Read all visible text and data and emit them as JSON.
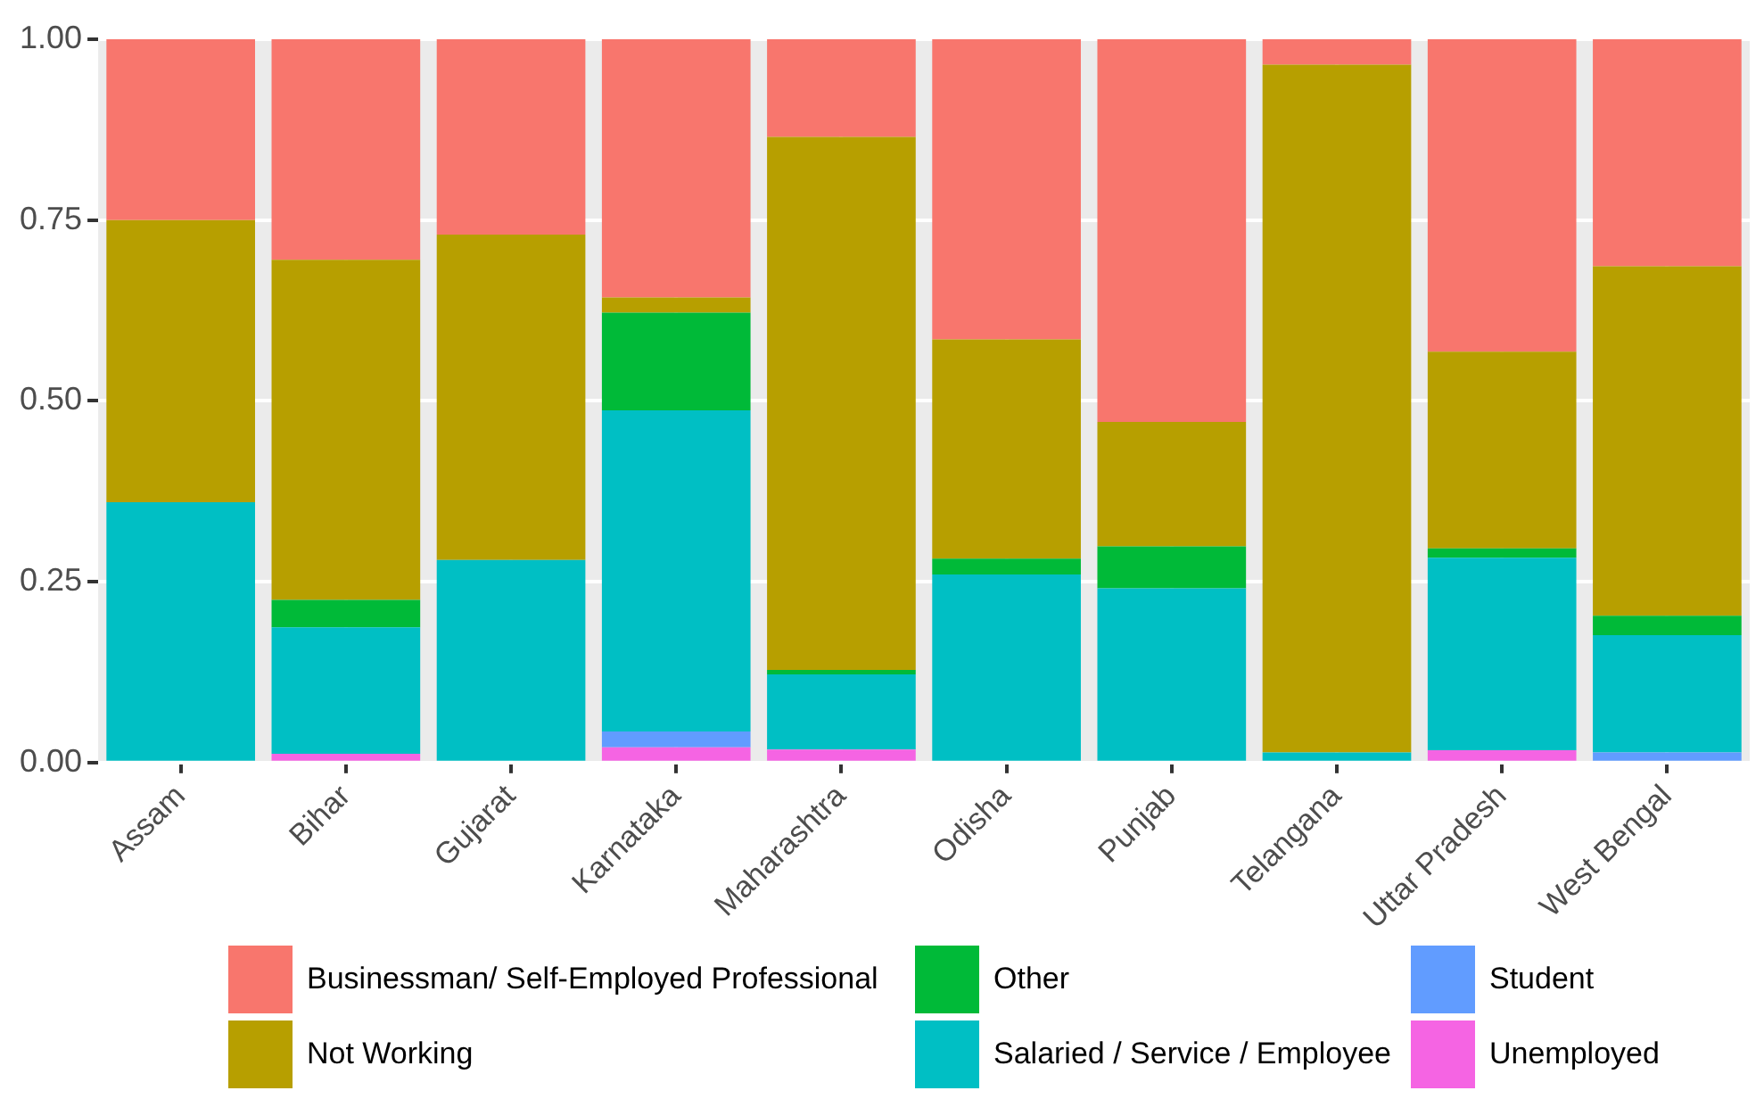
{
  "chart_data": {
    "type": "bar",
    "stacked": true,
    "categories": [
      "Assam",
      "Bihar",
      "Gujarat",
      "Karnataka",
      "Maharashtra",
      "Odisha",
      "Punjab",
      "Telangana",
      "Uttar Pradesh",
      "West Bengal"
    ],
    "series": [
      {
        "name": "Unemployed",
        "color": "#f564e3",
        "values": [
          0,
          0.012,
          0,
          0.021,
          0.018,
          0,
          0,
          0,
          0.017,
          0
        ]
      },
      {
        "name": "Student",
        "color": "#619cff",
        "values": [
          0,
          0,
          0,
          0.022,
          0,
          0,
          0,
          0,
          0,
          0.014
        ]
      },
      {
        "name": "Salaried / Service / Employee",
        "color": "#00bfc4",
        "values": [
          0.36,
          0.175,
          0.28,
          0.444,
          0.104,
          0.26,
          0.241,
          0.014,
          0.266,
          0.162
        ]
      },
      {
        "name": "Other",
        "color": "#00ba38",
        "values": [
          0,
          0.038,
          0,
          0.135,
          0.006,
          0.022,
          0.058,
          0,
          0.013,
          0.027
        ]
      },
      {
        "name": "Not Working",
        "color": "#b79f00",
        "values": [
          0.39,
          0.47,
          0.45,
          0.021,
          0.737,
          0.303,
          0.172,
          0.951,
          0.272,
          0.483
        ]
      },
      {
        "name": "Businessman/ Self-Employed Professional",
        "color": "#f8766d",
        "values": [
          0.25,
          0.305,
          0.27,
          0.357,
          0.135,
          0.415,
          0.529,
          0.035,
          0.432,
          0.314
        ]
      }
    ],
    "ylim": [
      0,
      1
    ],
    "yticks": [
      {
        "value": 0,
        "label": "0.00"
      },
      {
        "value": 0.25,
        "label": "0.25"
      },
      {
        "value": 0.5,
        "label": "0.50"
      },
      {
        "value": 0.75,
        "label": "0.75"
      },
      {
        "value": 1,
        "label": "1.00"
      }
    ],
    "grid": true,
    "legend": "bottom"
  }
}
